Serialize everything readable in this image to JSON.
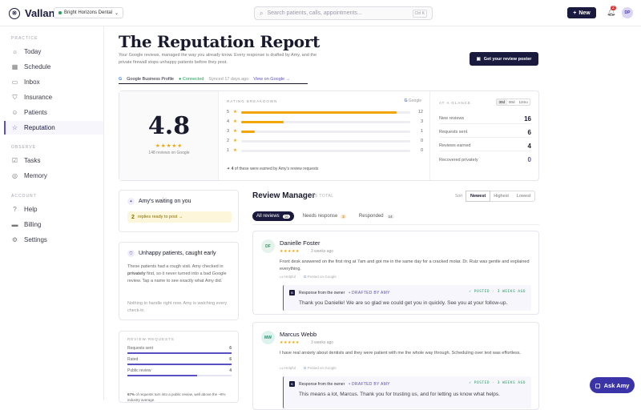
{
  "app": {
    "name": "Vallan",
    "practice": "Bright Horizons Dental"
  },
  "search": {
    "placeholder": "Search patients, calls, appointments...",
    "shortcut": "Ctrl K"
  },
  "header": {
    "new_label": "New",
    "notif_count": "2",
    "avatar_initials": "DP"
  },
  "sidebar": {
    "practice_label": "PRACTICE",
    "practice_items": [
      {
        "label": "Today",
        "icon": "sun-icon"
      },
      {
        "label": "Schedule",
        "icon": "calendar-icon"
      },
      {
        "label": "Inbox",
        "icon": "inbox-icon"
      },
      {
        "label": "Insurance",
        "icon": "shield-icon"
      },
      {
        "label": "Patients",
        "icon": "user-icon"
      },
      {
        "label": "Reputation",
        "icon": "star-icon"
      }
    ],
    "observe_label": "OBSERVE",
    "observe_items": [
      {
        "label": "Tasks",
        "icon": "checklist-icon"
      },
      {
        "label": "Memory",
        "icon": "database-icon"
      }
    ],
    "account_label": "ACCOUNT",
    "account_items": [
      {
        "label": "Help",
        "icon": "help-icon"
      },
      {
        "label": "Billing",
        "icon": "card-icon"
      },
      {
        "label": "Settings",
        "icon": "gear-icon"
      }
    ]
  },
  "page": {
    "title": "The Reputation Report",
    "subtitle": "Your Google reviews, managed the way you already know. Every response is drafted by Amy, and the private firewall stops unhappy patients before they post.",
    "poster_button": "Get your review poster",
    "gbp_label": "Google Business Profile",
    "connected": "Connected",
    "synced": "Synced 17 days ago",
    "view_on_google": "View on Google →"
  },
  "rating": {
    "average": "4.8",
    "stars": "★★★★★",
    "count_label": "148 reviews on Google"
  },
  "breakdown": {
    "heading": "RATING BREAKDOWN",
    "source": "Google",
    "rows": [
      {
        "star": "5",
        "count": "12",
        "fraction": 0.92
      },
      {
        "star": "4",
        "count": "3",
        "fraction": 0.25
      },
      {
        "star": "3",
        "count": "1",
        "fraction": 0.08
      },
      {
        "star": "2",
        "count": "0",
        "fraction": 0
      },
      {
        "star": "1",
        "count": "0",
        "fraction": 0
      }
    ],
    "note_count": "4",
    "note_text": "of these were earned by Amy's review requests"
  },
  "glance": {
    "heading": "AT A GLANCE",
    "ranges": [
      "30d",
      "90d",
      "12mo"
    ],
    "rows": [
      {
        "label": "New reviews",
        "value": "16"
      },
      {
        "label": "Requests sent",
        "value": "6"
      },
      {
        "label": "Reviews earned",
        "value": "4"
      },
      {
        "label": "Recovered privately",
        "value": "0"
      }
    ]
  },
  "waiting": {
    "title": "Amy's waiting on you",
    "count": "2",
    "text": "replies ready to post →"
  },
  "unhappy": {
    "title": "Unhappy patients, caught early",
    "text_pre": "These patients had a rough visit. Amy checked in ",
    "text_bold": "privately",
    "text_post": " first, so it never turned into a bad Google review. Tap a name to see exactly what Amy did.",
    "nothing": "Nothing to handle right now. Amy is watching every check-in."
  },
  "requests": {
    "heading": "REVIEW REQUESTS",
    "rows": [
      {
        "label": "Requests sent",
        "value": "6",
        "fraction": 1
      },
      {
        "label": "Rated",
        "value": "6",
        "fraction": 1
      },
      {
        "label": "Public review",
        "value": "4",
        "fraction": 0.67
      }
    ],
    "note_bold": "67%",
    "note": " of requests turn into a public review, well above the ~8% industry average."
  },
  "manager": {
    "title": "Review Manager",
    "count": "16 TOTAL",
    "sort_label": "Sort",
    "sort_options": [
      "Newest",
      "Highest",
      "Lowest"
    ],
    "tabs": [
      {
        "label": "All reviews",
        "count": "16"
      },
      {
        "label": "Needs response",
        "count": "2"
      },
      {
        "label": "Responded",
        "count": "14"
      }
    ]
  },
  "reviews": [
    {
      "initials": "DF",
      "name": "Danielle Foster",
      "stars": "★★★★★",
      "when": "3 weeks ago",
      "body": "Front desk answered on the first ring at 7am and got me in the same day for a cracked molar. Dr. Ruiz was gentle and explained everything.",
      "helpful": "Helpful",
      "posted_on": "Posted on Google",
      "resp_from": "Response from the owner",
      "drafted": "• DRAFTED BY AMY",
      "status": "✓ POSTED · 3 WEEKS AGO",
      "response": "Thank you Danielle! We are so glad we could get you in quickly. See you at your follow-up.",
      "color": "#e5f3ec"
    },
    {
      "initials": "MW",
      "name": "Marcus Webb",
      "stars": "★★★★★",
      "when": "3 weeks ago",
      "body": "I have real anxiety about dentists and they were patient with me the whole way through. Scheduling over text was effortless.",
      "helpful": "Helpful",
      "posted_on": "Posted on Google",
      "resp_from": "Response from the owner",
      "drafted": "• DRAFTED BY AMY",
      "status": "✓ POSTED · 3 WEEKS AGO",
      "response": "This means a lot, Marcus. Thank you for trusting us, and for letting us know what helps.",
      "color": "#dff3ee"
    }
  ],
  "ask": {
    "label": "Ask Amy"
  }
}
